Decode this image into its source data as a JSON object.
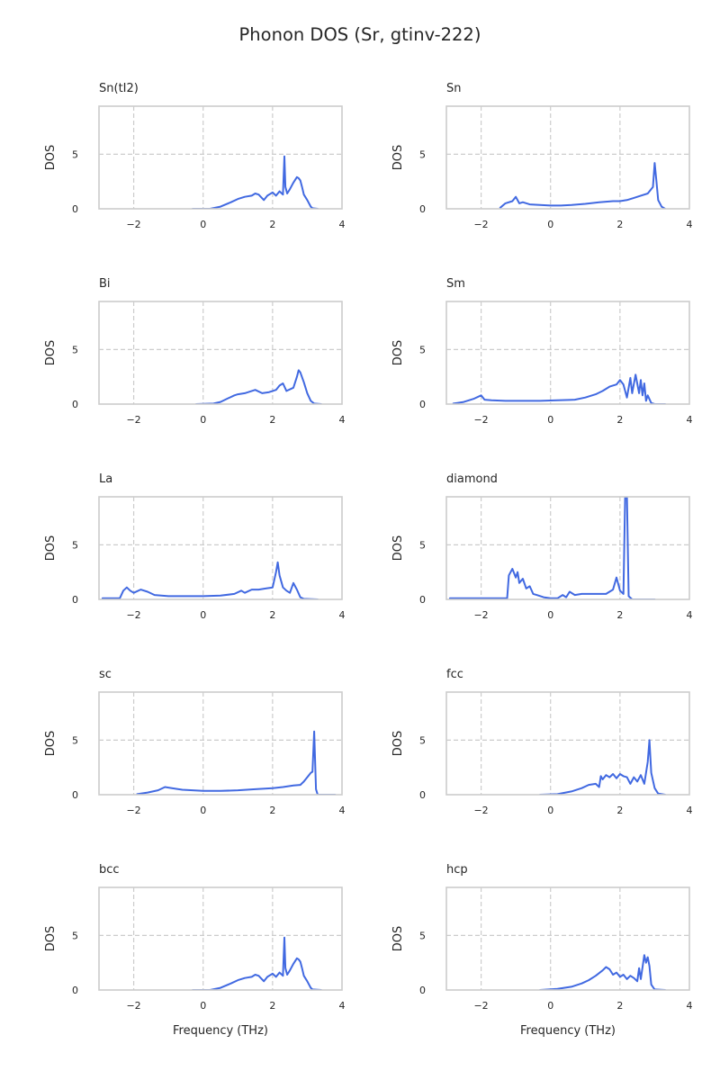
{
  "figure": {
    "title": "Phonon DOS (Sr, gtinv-222)"
  },
  "style": {
    "line_color": "#4169e1",
    "grid_color": "#cccccc",
    "frame_color": "#cccccc",
    "text_color": "#262626"
  },
  "chart_data": [
    {
      "type": "line",
      "title": "Sn(tI2)",
      "ylabel": "DOS",
      "xlabel": "",
      "xlim": [
        -3,
        4
      ],
      "ylim": [
        0,
        9.4
      ],
      "xticks": [
        -2,
        0,
        2,
        4
      ],
      "xtick_labels": [
        "−2",
        "0",
        "2",
        "4"
      ],
      "yticks": [
        0,
        5
      ],
      "ytick_labels": [
        "0",
        "5"
      ],
      "grid": true,
      "series": [
        {
          "x": [
            -0.3,
            0.2,
            0.5,
            0.8,
            1.0,
            1.2,
            1.4,
            1.5,
            1.6,
            1.75,
            1.85,
            2.0,
            2.1,
            2.2,
            2.3,
            2.34,
            2.37,
            2.42,
            2.5,
            2.6,
            2.7,
            2.75,
            2.8,
            2.85,
            2.9,
            3.0,
            3.1,
            3.15,
            3.3
          ],
          "y": [
            0,
            0,
            0.2,
            0.6,
            0.9,
            1.1,
            1.2,
            1.4,
            1.3,
            0.8,
            1.2,
            1.5,
            1.2,
            1.6,
            1.3,
            4.8,
            2.0,
            1.4,
            1.8,
            2.4,
            2.9,
            2.8,
            2.6,
            2.0,
            1.3,
            0.8,
            0.2,
            0.05,
            0
          ]
        }
      ]
    },
    {
      "type": "line",
      "title": "Sn",
      "ylabel": "DOS",
      "xlabel": "",
      "xlim": [
        -3,
        4
      ],
      "ylim": [
        0,
        9.4
      ],
      "xticks": [
        -2,
        0,
        2,
        4
      ],
      "xtick_labels": [
        "−2",
        "0",
        "2",
        "4"
      ],
      "yticks": [
        0,
        5
      ],
      "ytick_labels": [
        "0",
        "5"
      ],
      "grid": true,
      "series": [
        {
          "x": [
            -1.45,
            -1.3,
            -1.1,
            -1.0,
            -0.9,
            -0.8,
            -0.6,
            -0.3,
            0,
            0.3,
            0.6,
            1.0,
            1.4,
            1.8,
            2.0,
            2.2,
            2.4,
            2.6,
            2.8,
            2.95,
            3.0,
            3.05,
            3.1,
            3.2,
            3.3
          ],
          "y": [
            0.1,
            0.5,
            0.7,
            1.1,
            0.5,
            0.6,
            0.4,
            0.35,
            0.3,
            0.3,
            0.35,
            0.45,
            0.6,
            0.7,
            0.7,
            0.8,
            1.0,
            1.2,
            1.4,
            2.0,
            4.2,
            2.5,
            0.8,
            0.2,
            0
          ]
        }
      ]
    },
    {
      "type": "line",
      "title": "Bi",
      "ylabel": "DOS",
      "xlabel": "",
      "xlim": [
        -3,
        4
      ],
      "ylim": [
        0,
        9.4
      ],
      "xticks": [
        -2,
        0,
        2,
        4
      ],
      "xtick_labels": [
        "−2",
        "0",
        "2",
        "4"
      ],
      "yticks": [
        0,
        5
      ],
      "ytick_labels": [
        "0",
        "5"
      ],
      "grid": true,
      "series": [
        {
          "x": [
            -0.2,
            0.3,
            0.5,
            0.7,
            0.9,
            1.0,
            1.2,
            1.5,
            1.7,
            1.9,
            2.1,
            2.2,
            2.3,
            2.4,
            2.6,
            2.7,
            2.75,
            2.8,
            2.9,
            3.0,
            3.1,
            3.2,
            3.4
          ],
          "y": [
            0,
            0.05,
            0.2,
            0.5,
            0.8,
            0.9,
            1.0,
            1.3,
            1.0,
            1.1,
            1.3,
            1.7,
            1.9,
            1.2,
            1.5,
            2.5,
            3.1,
            2.9,
            2.0,
            1.0,
            0.3,
            0.05,
            0
          ]
        }
      ]
    },
    {
      "type": "line",
      "title": "Sm",
      "ylabel": "DOS",
      "xlabel": "",
      "xlim": [
        -3,
        4
      ],
      "ylim": [
        0,
        9.4
      ],
      "xticks": [
        -2,
        0,
        2,
        4
      ],
      "xtick_labels": [
        "−2",
        "0",
        "2",
        "4"
      ],
      "yticks": [
        0,
        5
      ],
      "ytick_labels": [
        "0",
        "5"
      ],
      "grid": true,
      "series": [
        {
          "x": [
            -2.8,
            -2.5,
            -2.2,
            -2.0,
            -1.9,
            -1.7,
            -1.3,
            -0.8,
            -0.3,
            0.2,
            0.7,
            1.0,
            1.3,
            1.5,
            1.7,
            1.9,
            2.0,
            2.1,
            2.2,
            2.3,
            2.35,
            2.45,
            2.55,
            2.6,
            2.65,
            2.7,
            2.75,
            2.8,
            2.9,
            3.0,
            3.3
          ],
          "y": [
            0.05,
            0.2,
            0.5,
            0.8,
            0.4,
            0.35,
            0.3,
            0.3,
            0.3,
            0.35,
            0.4,
            0.6,
            0.9,
            1.2,
            1.6,
            1.8,
            2.2,
            1.8,
            0.6,
            2.4,
            1.0,
            2.7,
            1.0,
            2.2,
            0.8,
            1.9,
            0.3,
            0.8,
            0.1,
            0,
            0
          ]
        }
      ]
    },
    {
      "type": "line",
      "title": "La",
      "ylabel": "DOS",
      "xlabel": "",
      "xlim": [
        -3,
        4
      ],
      "ylim": [
        0,
        9.4
      ],
      "xticks": [
        -2,
        0,
        2,
        4
      ],
      "xtick_labels": [
        "−2",
        "0",
        "2",
        "4"
      ],
      "yticks": [
        0,
        5
      ],
      "ytick_labels": [
        "0",
        "5"
      ],
      "grid": true,
      "series": [
        {
          "x": [
            -2.9,
            -2.4,
            -2.3,
            -2.2,
            -2.1,
            -2.0,
            -1.8,
            -1.6,
            -1.4,
            -1.0,
            -0.5,
            0,
            0.5,
            0.9,
            1.1,
            1.2,
            1.4,
            1.6,
            1.8,
            2.0,
            2.1,
            2.15,
            2.2,
            2.3,
            2.4,
            2.5,
            2.6,
            2.7,
            2.8,
            2.9,
            3.3
          ],
          "y": [
            0.1,
            0.1,
            0.8,
            1.1,
            0.8,
            0.6,
            0.9,
            0.7,
            0.4,
            0.3,
            0.3,
            0.3,
            0.35,
            0.5,
            0.8,
            0.6,
            0.9,
            0.9,
            1.0,
            1.1,
            2.5,
            3.4,
            2.2,
            1.1,
            0.8,
            0.6,
            1.5,
            0.9,
            0.2,
            0.05,
            0
          ]
        }
      ]
    },
    {
      "type": "line",
      "title": "diamond",
      "ylabel": "DOS",
      "xlabel": "",
      "xlim": [
        -3,
        4
      ],
      "ylim": [
        0,
        9.4
      ],
      "xticks": [
        -2,
        0,
        2,
        4
      ],
      "xtick_labels": [
        "−2",
        "0",
        "2",
        "4"
      ],
      "yticks": [
        0,
        5
      ],
      "ytick_labels": [
        "0",
        "5"
      ],
      "grid": true,
      "series": [
        {
          "x": [
            -2.9,
            -1.25,
            -1.2,
            -1.1,
            -1.0,
            -0.95,
            -0.9,
            -0.8,
            -0.7,
            -0.6,
            -0.5,
            -0.4,
            -0.2,
            0,
            0.2,
            0.35,
            0.45,
            0.55,
            0.7,
            0.9,
            1.2,
            1.4,
            1.6,
            1.8,
            1.9,
            2.0,
            2.1,
            2.15,
            2.2,
            2.25,
            2.35,
            3.0
          ],
          "y": [
            0.1,
            0.1,
            2.2,
            2.8,
            2.0,
            2.5,
            1.5,
            1.9,
            1.0,
            1.2,
            0.5,
            0.4,
            0.2,
            0.1,
            0.1,
            0.4,
            0.2,
            0.7,
            0.4,
            0.5,
            0.5,
            0.5,
            0.5,
            0.9,
            2.0,
            0.8,
            0.5,
            9.4,
            9.4,
            0.3,
            0,
            0
          ]
        }
      ]
    },
    {
      "type": "line",
      "title": "sc",
      "ylabel": "DOS",
      "xlabel": "",
      "xlim": [
        -3,
        4
      ],
      "ylim": [
        0,
        9.4
      ],
      "xticks": [
        -2,
        0,
        2,
        4
      ],
      "xtick_labels": [
        "−2",
        "0",
        "2",
        "4"
      ],
      "yticks": [
        0,
        5
      ],
      "ytick_labels": [
        "0",
        "5"
      ],
      "grid": true,
      "series": [
        {
          "x": [
            -1.9,
            -1.6,
            -1.3,
            -1.1,
            -0.9,
            -0.6,
            -0.3,
            0,
            0.5,
            1.0,
            1.5,
            2.0,
            2.3,
            2.6,
            2.8,
            2.9,
            3.0,
            3.1,
            3.15,
            3.2,
            3.25,
            3.3,
            3.8
          ],
          "y": [
            0.05,
            0.2,
            0.4,
            0.7,
            0.6,
            0.45,
            0.4,
            0.35,
            0.35,
            0.4,
            0.5,
            0.6,
            0.7,
            0.85,
            0.9,
            1.2,
            1.6,
            2.0,
            2.1,
            5.8,
            0.5,
            0,
            0
          ]
        }
      ]
    },
    {
      "type": "line",
      "title": "fcc",
      "ylabel": "DOS",
      "xlabel": "",
      "xlim": [
        -3,
        4
      ],
      "ylim": [
        0,
        9.4
      ],
      "xticks": [
        -2,
        0,
        2,
        4
      ],
      "xtick_labels": [
        "−2",
        "0",
        "2",
        "4"
      ],
      "yticks": [
        0,
        5
      ],
      "ytick_labels": [
        "0",
        "5"
      ],
      "grid": true,
      "series": [
        {
          "x": [
            -0.3,
            0.2,
            0.6,
            0.9,
            1.1,
            1.3,
            1.4,
            1.45,
            1.5,
            1.6,
            1.7,
            1.8,
            1.9,
            2.0,
            2.1,
            2.2,
            2.3,
            2.4,
            2.5,
            2.6,
            2.7,
            2.8,
            2.85,
            2.9,
            3.0,
            3.1,
            3.3
          ],
          "y": [
            0,
            0.05,
            0.3,
            0.6,
            0.9,
            1.0,
            0.7,
            1.7,
            1.4,
            1.8,
            1.6,
            1.9,
            1.5,
            1.9,
            1.7,
            1.6,
            1.0,
            1.6,
            1.2,
            1.8,
            1.0,
            3.0,
            5.0,
            2.0,
            0.6,
            0.1,
            0
          ]
        }
      ]
    },
    {
      "type": "line",
      "title": "bcc",
      "ylabel": "DOS",
      "xlabel": "Frequency (THz)",
      "xlim": [
        -3,
        4
      ],
      "ylim": [
        0,
        9.4
      ],
      "xticks": [
        -2,
        0,
        2,
        4
      ],
      "xtick_labels": [
        "−2",
        "0",
        "2",
        "4"
      ],
      "yticks": [
        0,
        5
      ],
      "ytick_labels": [
        "0",
        "5"
      ],
      "grid": true,
      "series": [
        {
          "x": [
            -0.3,
            0.2,
            0.5,
            0.8,
            1.0,
            1.2,
            1.4,
            1.5,
            1.6,
            1.75,
            1.85,
            2.0,
            2.1,
            2.2,
            2.3,
            2.34,
            2.37,
            2.42,
            2.5,
            2.6,
            2.7,
            2.75,
            2.8,
            2.85,
            2.9,
            3.0,
            3.1,
            3.15,
            3.4
          ],
          "y": [
            0,
            0,
            0.2,
            0.6,
            0.9,
            1.1,
            1.2,
            1.4,
            1.3,
            0.8,
            1.2,
            1.5,
            1.2,
            1.6,
            1.3,
            4.8,
            2.0,
            1.4,
            1.8,
            2.4,
            2.9,
            2.8,
            2.6,
            2.0,
            1.3,
            0.8,
            0.2,
            0.05,
            0
          ]
        }
      ]
    },
    {
      "type": "line",
      "title": "hcp",
      "ylabel": "DOS",
      "xlabel": "Frequency (THz)",
      "xlim": [
        -3,
        4
      ],
      "ylim": [
        0,
        9.4
      ],
      "xticks": [
        -2,
        0,
        2,
        4
      ],
      "xtick_labels": [
        "−2",
        "0",
        "2",
        "4"
      ],
      "yticks": [
        0,
        5
      ],
      "ytick_labels": [
        "0",
        "5"
      ],
      "grid": true,
      "series": [
        {
          "x": [
            -0.3,
            0.2,
            0.6,
            0.9,
            1.1,
            1.3,
            1.5,
            1.6,
            1.7,
            1.8,
            1.9,
            2.0,
            2.1,
            2.2,
            2.3,
            2.4,
            2.5,
            2.55,
            2.6,
            2.7,
            2.75,
            2.8,
            2.85,
            2.9,
            3.0,
            3.3
          ],
          "y": [
            0,
            0.1,
            0.3,
            0.6,
            0.9,
            1.3,
            1.8,
            2.1,
            1.9,
            1.4,
            1.6,
            1.2,
            1.4,
            1.0,
            1.3,
            1.1,
            0.8,
            2.0,
            1.0,
            3.2,
            2.5,
            3.0,
            2.2,
            0.5,
            0.05,
            0
          ]
        }
      ]
    }
  ]
}
